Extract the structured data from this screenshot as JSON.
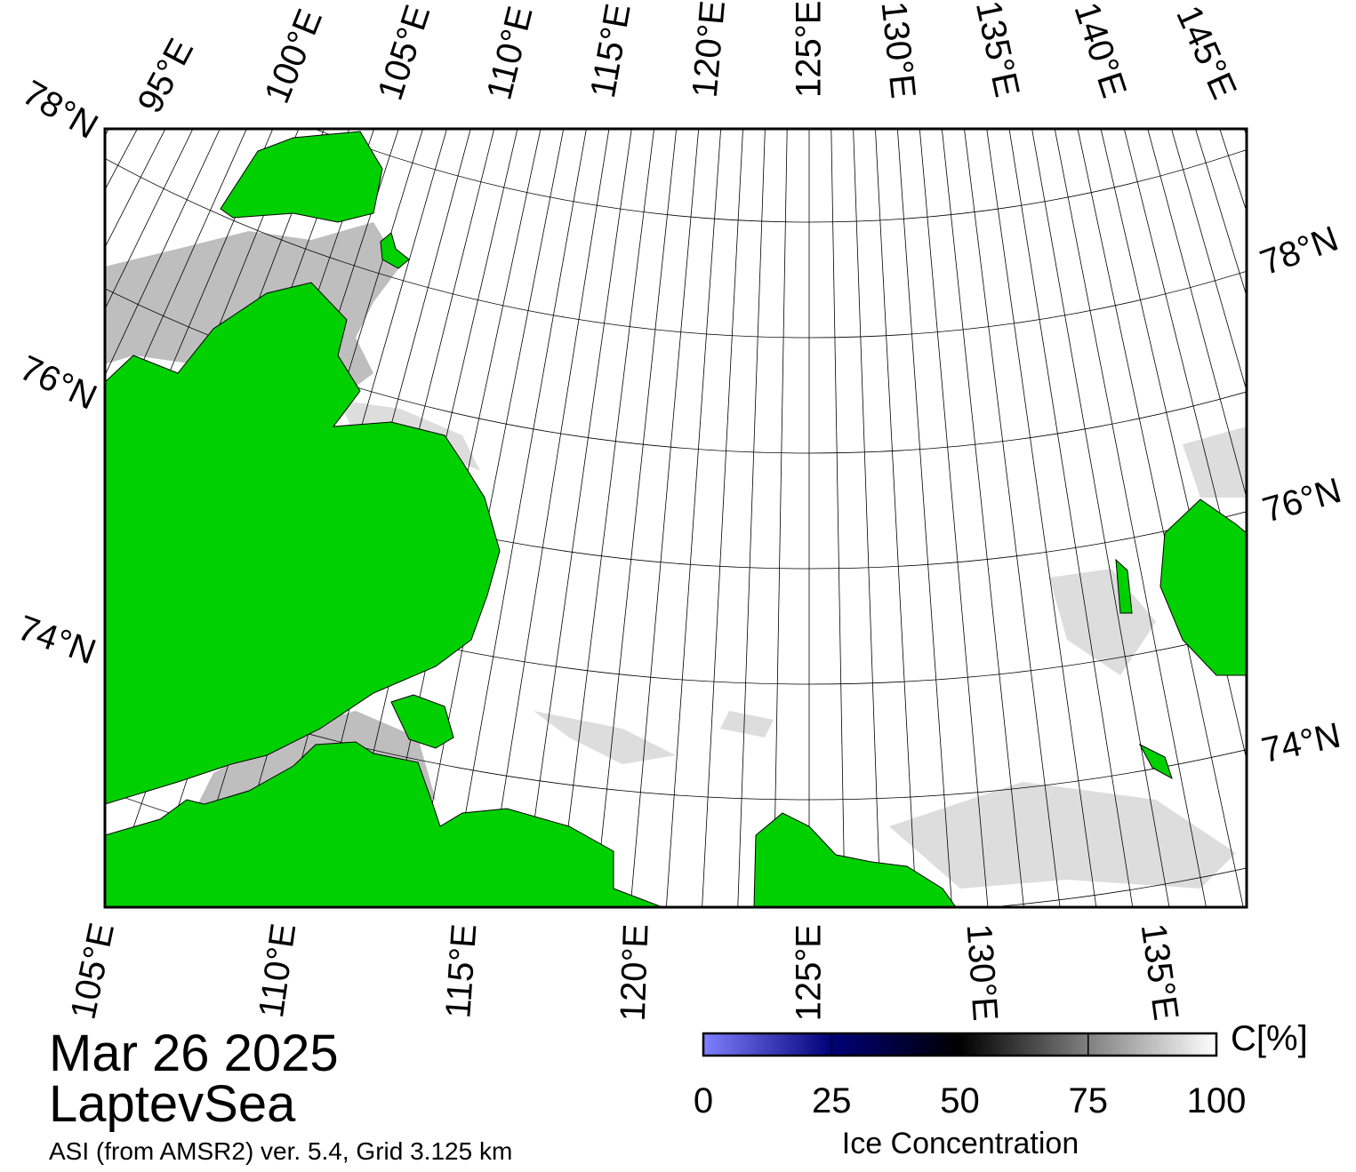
{
  "date": "Mar 26 2025",
  "region": "LaptevSea",
  "source": "ASI (from AMSR2) ver. 5.4,  Grid 3.125 km",
  "frame_labels": {
    "top": [
      "95°E",
      "100°E",
      "105°E",
      "110°E",
      "115°E",
      "120°E",
      "125°E",
      "130°E",
      "135°E",
      "140°E",
      "145°E"
    ],
    "left": [
      "78°N",
      "76°N",
      "74°N"
    ],
    "right": [
      "78°N",
      "76°N",
      "74°N"
    ],
    "bottom": [
      "105°E",
      "110°E",
      "115°E",
      "120°E",
      "125°E",
      "130°E",
      "135°E"
    ]
  },
  "colorbar": {
    "unit": "C[%]",
    "label": "Ice Concentration",
    "range": [
      0,
      100
    ],
    "ticks": [
      0,
      25,
      50,
      75,
      100
    ],
    "colorscale": [
      {
        "value": 0,
        "color": "#8080ff"
      },
      {
        "value": 25,
        "color": "#000078"
      },
      {
        "value": 50,
        "color": "#000000"
      },
      {
        "value": 100,
        "color": "#ffffff"
      }
    ]
  }
}
